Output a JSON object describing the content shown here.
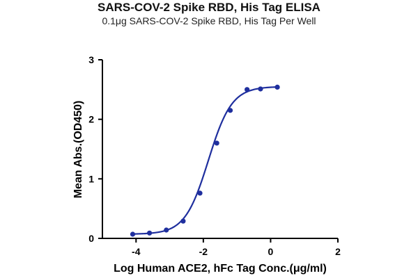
{
  "chart_data": {
    "type": "scatter",
    "title": "SARS-COV-2 Spike RBD, His Tag ELISA",
    "subtitle": "0.1μg SARS-COV-2 Spike RBD, His Tag Per Well",
    "xlabel": "Log Human ACE2, hFc Tag Conc.(μg/ml)",
    "ylabel": "Mean Abs.(OD450)",
    "xlim": [
      -5,
      2
    ],
    "ylim": [
      0,
      3
    ],
    "x_ticks": [
      -4,
      -2,
      0,
      2
    ],
    "x_tick_labels": [
      "-4",
      "-2",
      "0",
      "2"
    ],
    "y_ticks": [
      0,
      1,
      2,
      3
    ],
    "y_tick_labels": [
      "0",
      "1",
      "2",
      "3"
    ],
    "grid": false,
    "legend": "none",
    "series": [
      {
        "x": [
          -4.1,
          -3.6,
          -3.1,
          -2.6,
          -2.1,
          -1.6,
          -1.2,
          -0.7,
          -0.3,
          0.2
        ],
        "y": [
          0.07,
          0.09,
          0.14,
          0.29,
          0.76,
          1.6,
          2.15,
          2.5,
          2.51,
          2.54
        ],
        "color": "#1f2f9e"
      }
    ],
    "fit_curve": {
      "model": "4PL",
      "bottom": 0.07,
      "top": 2.55,
      "log_ec50": -1.85,
      "hill": 1.25,
      "x_range": [
        -4.1,
        0.2
      ],
      "color": "#1f2f9e"
    }
  }
}
